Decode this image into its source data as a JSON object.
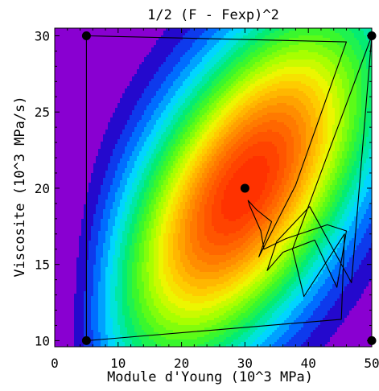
{
  "chart_data": {
    "type": "heatmap",
    "title": "1/2 (F - Fexp)^2",
    "xlabel": "Module d'Young (10^3 MPa)",
    "ylabel": "Viscosite (10^3 MPa/s)",
    "xlim": [
      0,
      50
    ],
    "ylim": [
      9.6,
      30.5
    ],
    "x_ticks": [
      0,
      10,
      20,
      30,
      40,
      50
    ],
    "y_ticks": [
      10,
      15,
      20,
      25,
      30
    ],
    "grid": false,
    "colormap": "hue (magenta → blue → cyan → green → yellow → orange → red)",
    "minimum": {
      "x": 30,
      "y": 20
    },
    "start_points": [
      {
        "x": 5,
        "y": 30
      },
      {
        "x": 50,
        "y": 30
      },
      {
        "x": 5,
        "y": 10
      },
      {
        "x": 50,
        "y": 10
      },
      {
        "x": 30,
        "y": 20
      }
    ],
    "search_path": [
      [
        5,
        30
      ],
      [
        46,
        29.6
      ],
      [
        38,
        20.2
      ],
      [
        32.2,
        15.5
      ],
      [
        34.2,
        17.8
      ],
      [
        31.8,
        18.6
      ],
      [
        30.5,
        19.2
      ],
      [
        30.8,
        18.8
      ],
      [
        32.5,
        17.2
      ],
      [
        33,
        16
      ],
      [
        36.5,
        16.7
      ],
      [
        43,
        17.6
      ],
      [
        46,
        17.2
      ],
      [
        44.5,
        13.5
      ],
      [
        41,
        16.6
      ],
      [
        36,
        15.8
      ],
      [
        33.5,
        14.6
      ],
      [
        35,
        16.5
      ],
      [
        40.2,
        18.8
      ],
      [
        46.8,
        13.8
      ],
      [
        50,
        30
      ],
      [
        37.5,
        16
      ],
      [
        39.3,
        12.9
      ],
      [
        45.7,
        17
      ],
      [
        45.2,
        11.4
      ],
      [
        8,
        10.1
      ],
      [
        5,
        10
      ],
      [
        5,
        30
      ]
    ]
  }
}
